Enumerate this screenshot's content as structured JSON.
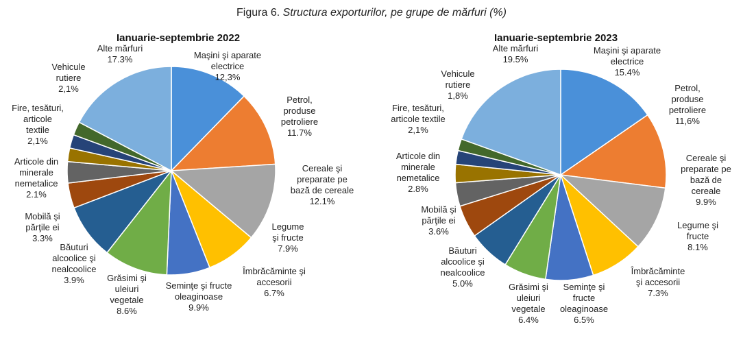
{
  "figure": {
    "prefix": "Figura 6.",
    "title": "Structura exporturilor, pe grupe de mărfuri (%)"
  },
  "chart_data": [
    {
      "type": "pie",
      "title": "Ianuarie-septembrie 2022",
      "categories": [
        "Maşini şi aparate electrice",
        "Petrol, produse petroliere",
        "Cereale şi preparate pe bază de cereale",
        "Legume şi fructe",
        "Îmbrăcăminte şi accesorii",
        "Seminţe şi fructe oleaginoase",
        "Grăsimi şi uleiuri vegetale",
        "Băuturi alcoolice şi nealcoolice",
        "Mobilă şi părţile ei",
        "Articole din minerale nemetalice",
        "Fire, tesături, articole textile",
        "Vehicule rutiere",
        "Alte mărfuri"
      ],
      "values": [
        12.3,
        11.7,
        12.1,
        7.9,
        6.7,
        9.9,
        8.6,
        3.9,
        3.3,
        2.1,
        2.1,
        2.1,
        17.3
      ],
      "value_labels": [
        "12,3%",
        "11.7%",
        "12.1%",
        "7.9%",
        "6.7%",
        "9.9%",
        "8.6%",
        "3.9%",
        "3.3%",
        "2.1%",
        "2,1%",
        "2,1%",
        "17.3%"
      ],
      "label_lines": [
        [
          "Maşini şi aparate",
          "electrice"
        ],
        [
          "Petrol,",
          "produse",
          "petroliere"
        ],
        [
          "Cereale şi",
          "preparate pe",
          "bază de cereale"
        ],
        [
          "Legume",
          "şi fructe"
        ],
        [
          "Îmbrăcăminte şi",
          "accesorii"
        ],
        [
          "Seminţe şi fructe",
          "oleaginoase"
        ],
        [
          "Grăsimi şi",
          "uleiuri",
          "vegetale"
        ],
        [
          "Băuturi",
          "alcoolice şi",
          "nealcoolice"
        ],
        [
          "Mobilă şi",
          "părţile ei"
        ],
        [
          "Articole din",
          "minerale",
          "nemetalice"
        ],
        [
          "Fire, tesături,",
          "articole",
          "textile"
        ],
        [
          "Vehicule",
          "rutiere"
        ],
        [
          "Alte mărfuri"
        ]
      ]
    },
    {
      "type": "pie",
      "title": "Ianuarie-septembrie 2023",
      "categories": [
        "Maşini şi aparate electrice",
        "Petrol, produse petroliere",
        "Cereale şi preparate pe bază de cereale",
        "Legume şi fructe",
        "Îmbrăcăminte şi accesorii",
        "Seminţe şi fructe oleaginoase",
        "Grăsimi şi uleiuri vegetale",
        "Băuturi alcoolice şi nealcoolice",
        "Mobilă şi părţile ei",
        "Articole din minerale nemetalice",
        "Fire, tesături, articole textile",
        "Vehicule rutiere",
        "Alte mărfuri"
      ],
      "values": [
        15.4,
        11.6,
        9.9,
        8.1,
        7.3,
        6.5,
        6.4,
        5.0,
        3.6,
        2.8,
        2.1,
        1.8,
        19.5
      ],
      "value_labels": [
        "15.4%",
        "11,6%",
        "9.9%",
        "8.1%",
        "7.3%",
        "6.5%",
        "6.4%",
        "5.0%",
        "3.6%",
        "2.8%",
        "2,1%",
        "1,8%",
        "19.5%"
      ],
      "label_lines": [
        [
          "Maşini şi aparate",
          "electrice"
        ],
        [
          "Petrol,",
          "produse",
          "petroliere"
        ],
        [
          "Cereale şi",
          "preparate pe",
          "bază de",
          "cereale"
        ],
        [
          "Legume şi",
          "fructe"
        ],
        [
          "Îmbrăcăminte",
          "şi accesorii"
        ],
        [
          "Seminţe şi",
          "fructe",
          "oleaginoase"
        ],
        [
          "Grăsimi şi",
          "uleiuri",
          "vegetale"
        ],
        [
          "Băuturi",
          "alcoolice şi",
          "nealcoolice"
        ],
        [
          "Mobilă şi",
          "părţile ei"
        ],
        [
          "Articole din",
          "minerale",
          "nemetalice"
        ],
        [
          "Fire, tesături,",
          "articole textile"
        ],
        [
          "Vehicule",
          "rutiere"
        ],
        [
          "Alte mărfuri"
        ]
      ]
    }
  ],
  "colors": [
    "#4a90d9",
    "#ed7d31",
    "#a5a5a5",
    "#ffc000",
    "#4472c4",
    "#70ad47",
    "#255e91",
    "#9e480e",
    "#636363",
    "#997300",
    "#264478",
    "#43682b",
    "#7cafdd"
  ]
}
